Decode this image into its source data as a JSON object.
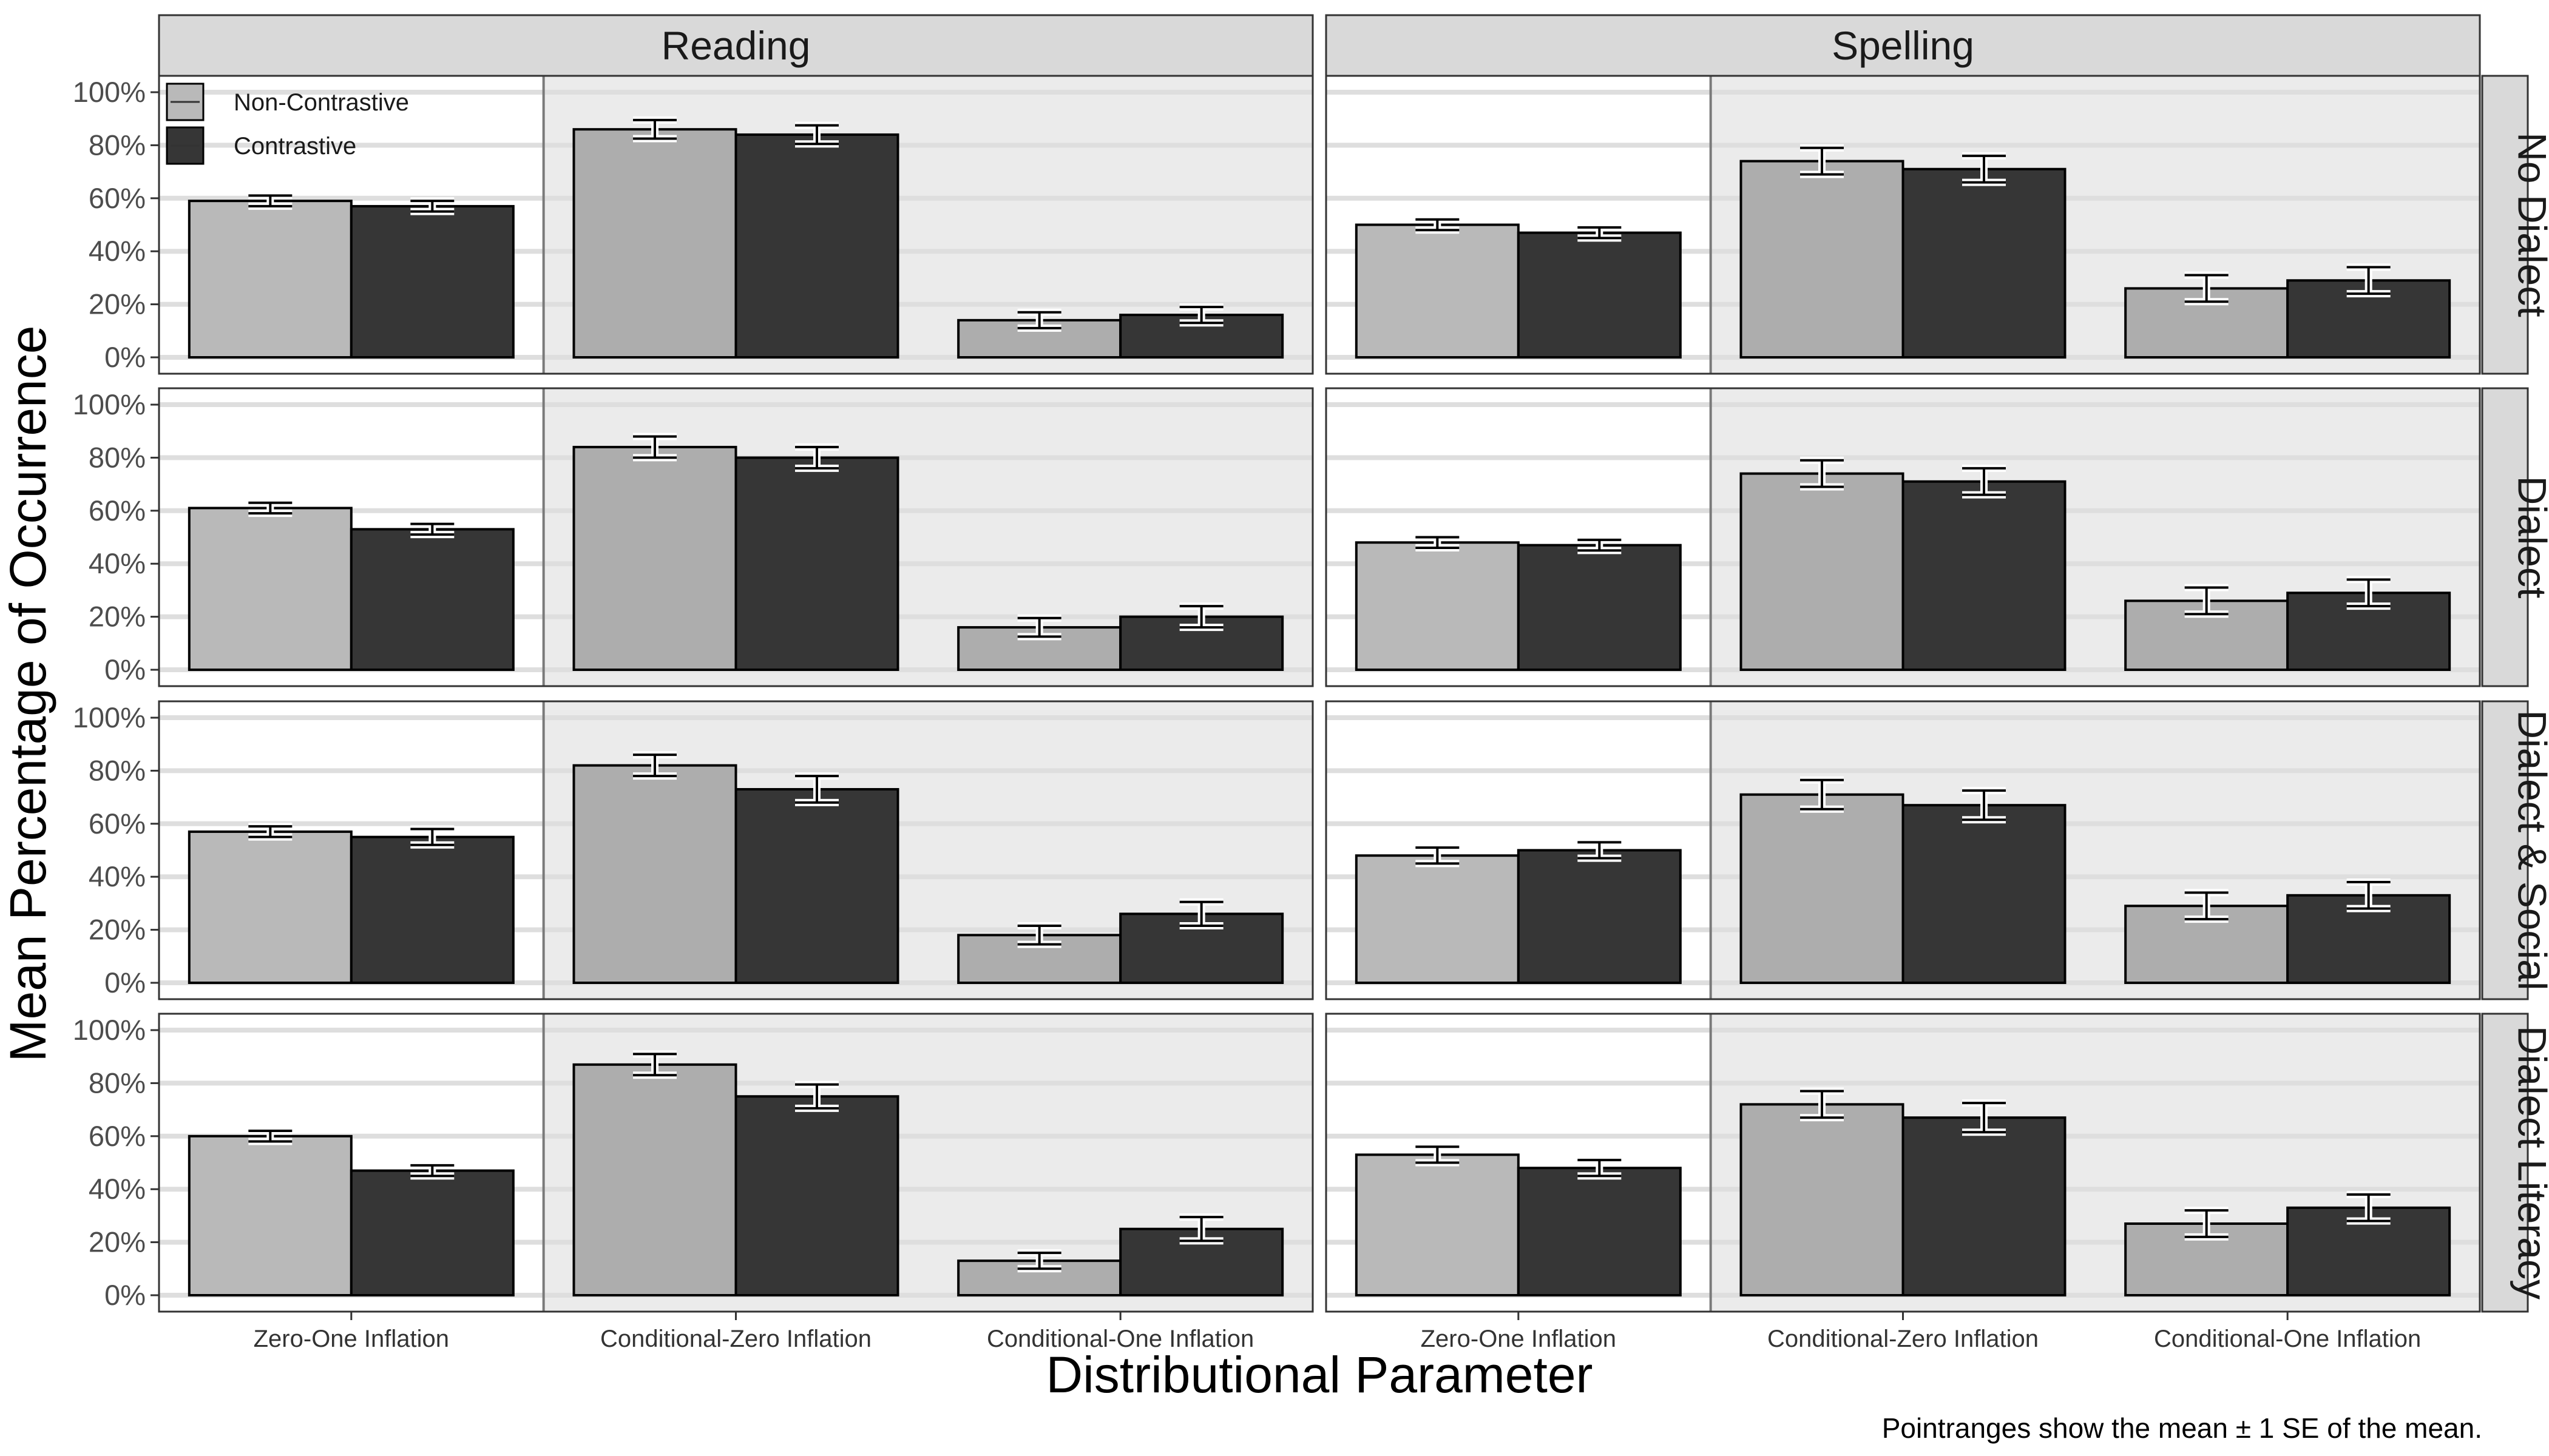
{
  "chart_data": {
    "type": "bar",
    "facet_columns": [
      "Reading",
      "Spelling"
    ],
    "facet_rows": [
      "No Dialect",
      "Dialect",
      "Dialect & Social",
      "Dialect Literacy"
    ],
    "categories": [
      "Zero-One Inflation",
      "Conditional-Zero Inflation",
      "Conditional-One Inflation"
    ],
    "series": [
      {
        "name": "Non-Contrastive",
        "color": "#b9b9b9"
      },
      {
        "name": "Contrastive",
        "color": "#363636"
      }
    ],
    "xlabel": "Distributional Parameter",
    "ylabel": "Mean Percentage of Occurrence",
    "ylim": [
      0,
      100
    ],
    "yticks": [
      0,
      20,
      40,
      60,
      80,
      100
    ],
    "ytick_labels": [
      "0%",
      "20%",
      "40%",
      "60%",
      "80%",
      "100%"
    ],
    "legend_position": "top-left",
    "grid": true,
    "caption": "Pointranges show the mean ± 1 SE of the mean.",
    "panels": [
      {
        "column": "Reading",
        "row": "No Dialect",
        "values": [
          [
            59,
            57
          ],
          [
            86,
            84
          ],
          [
            14,
            16
          ]
        ],
        "se": [
          [
            2,
            2
          ],
          [
            3.5,
            3.5
          ],
          [
            3,
            3
          ]
        ]
      },
      {
        "column": "Spelling",
        "row": "No Dialect",
        "values": [
          [
            50,
            47
          ],
          [
            74,
            71
          ],
          [
            26,
            29
          ]
        ],
        "se": [
          [
            2,
            2
          ],
          [
            5,
            5
          ],
          [
            5,
            5
          ]
        ]
      },
      {
        "column": "Reading",
        "row": "Dialect",
        "values": [
          [
            61,
            53
          ],
          [
            84,
            80
          ],
          [
            16,
            20
          ]
        ],
        "se": [
          [
            2,
            2
          ],
          [
            4,
            4
          ],
          [
            3.5,
            4
          ]
        ]
      },
      {
        "column": "Spelling",
        "row": "Dialect",
        "values": [
          [
            48,
            47
          ],
          [
            74,
            71
          ],
          [
            26,
            29
          ]
        ],
        "se": [
          [
            2,
            2
          ],
          [
            5,
            5
          ],
          [
            5,
            5
          ]
        ]
      },
      {
        "column": "Reading",
        "row": "Dialect & Social",
        "values": [
          [
            57,
            55
          ],
          [
            82,
            73
          ],
          [
            18,
            26
          ]
        ],
        "se": [
          [
            2,
            3
          ],
          [
            4,
            5
          ],
          [
            3.5,
            4.5
          ]
        ]
      },
      {
        "column": "Spelling",
        "row": "Dialect & Social",
        "values": [
          [
            48,
            50
          ],
          [
            71,
            67
          ],
          [
            29,
            33
          ]
        ],
        "se": [
          [
            3,
            3
          ],
          [
            5.5,
            5.5
          ],
          [
            5,
            5
          ]
        ]
      },
      {
        "column": "Reading",
        "row": "Dialect Literacy",
        "values": [
          [
            60,
            47
          ],
          [
            87,
            75
          ],
          [
            13,
            25
          ]
        ],
        "se": [
          [
            2,
            2
          ],
          [
            4,
            4.5
          ],
          [
            3,
            4.5
          ]
        ]
      },
      {
        "column": "Spelling",
        "row": "Dialect Literacy",
        "values": [
          [
            53,
            48
          ],
          [
            72,
            67
          ],
          [
            27,
            33
          ]
        ],
        "se": [
          [
            3,
            3
          ],
          [
            5,
            5.5
          ],
          [
            5,
            5
          ]
        ]
      }
    ]
  }
}
